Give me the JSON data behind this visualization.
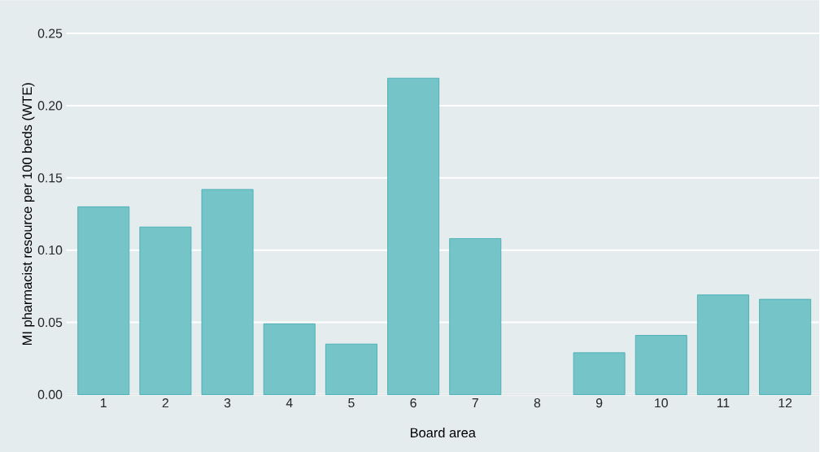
{
  "chart_data": {
    "type": "bar",
    "xlabel": "Board area",
    "ylabel": "MI pharmacist resource per 100 beds (WTE)",
    "categories": [
      "1",
      "2",
      "3",
      "4",
      "5",
      "6",
      "7",
      "8",
      "9",
      "10",
      "11",
      "12"
    ],
    "values": [
      0.13,
      0.116,
      0.142,
      0.049,
      0.035,
      0.219,
      0.108,
      null,
      0.029,
      0.041,
      0.069,
      0.066
    ],
    "color": "#74c4c8",
    "ylim": [
      0,
      0.25
    ],
    "yticks": [
      {
        "value": 0,
        "label": "0.00"
      },
      {
        "value": 0.05,
        "label": "0.05"
      },
      {
        "value": 0.1,
        "label": "0.10"
      },
      {
        "value": 0.15,
        "label": "0.15"
      },
      {
        "value": 0.2,
        "label": "0.20"
      },
      {
        "value": 0.25,
        "label": "0.25"
      }
    ],
    "grid": "y"
  }
}
